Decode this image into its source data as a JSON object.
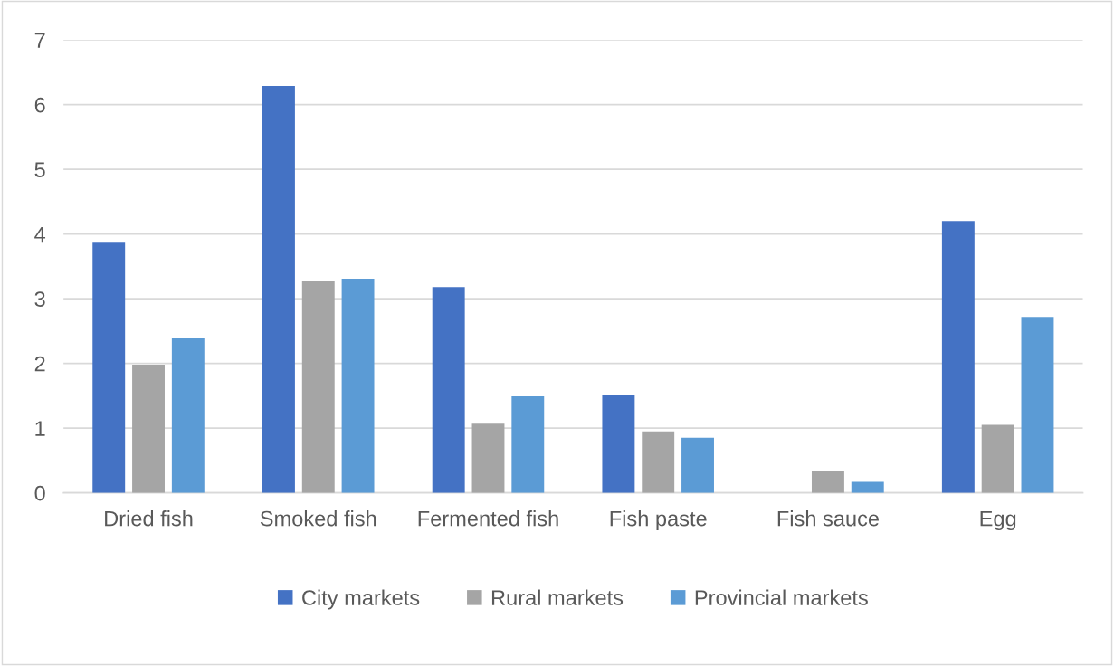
{
  "chart_data": {
    "type": "bar",
    "categories": [
      "Dried fish",
      "Smoked fish",
      "Fermented fish",
      "Fish paste",
      "Fish sauce",
      "Egg"
    ],
    "series": [
      {
        "name": "City markets",
        "color": "#4472c4",
        "values": [
          3.88,
          6.29,
          3.18,
          1.52,
          0,
          4.2
        ]
      },
      {
        "name": "Rural markets",
        "color": "#a5a5a5",
        "values": [
          1.98,
          3.28,
          1.07,
          0.95,
          0.33,
          1.05
        ]
      },
      {
        "name": "Provincial markets",
        "color": "#5b9bd5",
        "values": [
          2.4,
          3.31,
          1.49,
          0.85,
          0.17,
          2.72
        ]
      }
    ],
    "ylim": [
      0,
      7
    ],
    "yticks": [
      0,
      1,
      2,
      3,
      4,
      5,
      6,
      7
    ],
    "grid": "y",
    "legend": "bottom"
  }
}
